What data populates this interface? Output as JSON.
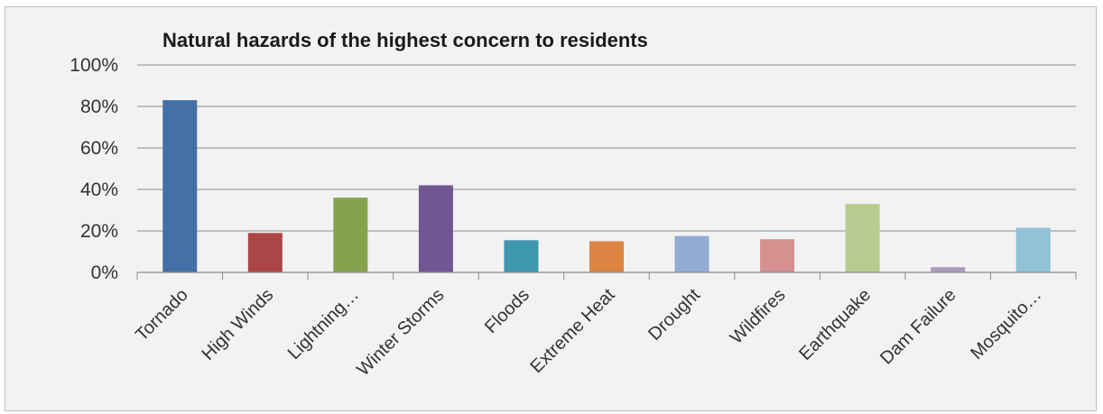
{
  "chart_data": {
    "type": "bar",
    "title": "Natural hazards of the highest concern to residents",
    "xlabel": "",
    "ylabel": "",
    "ylim": [
      0,
      100
    ],
    "y_ticks": [
      "0%",
      "20%",
      "40%",
      "60%",
      "80%",
      "100%"
    ],
    "y_tick_values": [
      0,
      20,
      40,
      60,
      80,
      100
    ],
    "grid": true,
    "legend": "none",
    "categories": [
      "Tornado",
      "High Winds",
      "Lightning…",
      "Winter Storms",
      "Floods",
      "Extreme Heat",
      "Drought",
      "Wildfires",
      "Earthquake",
      "Dam Failure",
      "Mosquito…"
    ],
    "values": [
      83,
      19,
      36,
      42,
      15.5,
      15,
      17.5,
      16,
      33,
      2.5,
      21.5
    ],
    "colors": [
      "#4470a7",
      "#ac4546",
      "#87a24c",
      "#725693",
      "#3f97ad",
      "#dc8441",
      "#94abd3",
      "#d59190",
      "#b8cc90",
      "#a99cbe",
      "#91c2d6"
    ]
  }
}
